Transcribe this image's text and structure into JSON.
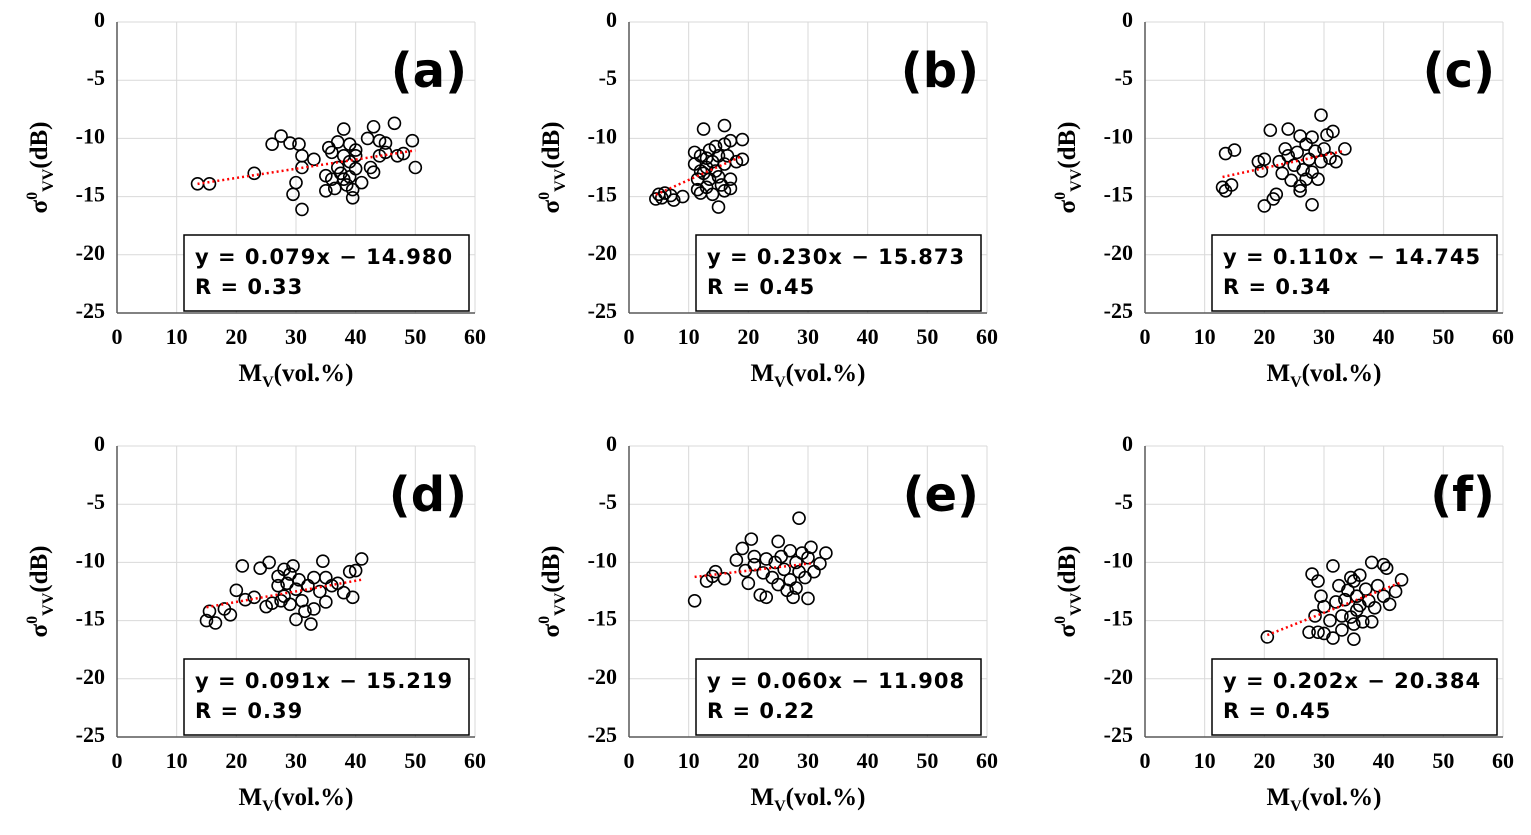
{
  "chart_data": [
    {
      "type": "scatter",
      "label": "(a)",
      "xlabel": {
        "main": "M",
        "sub": "V",
        "rest": "(vol.%)"
      },
      "ylabel": {
        "main": "σ",
        "sup": "0",
        "sub": "VV",
        "rest": "(dB)"
      },
      "x": [
        13.5,
        15.5,
        23,
        26,
        27.5,
        29,
        29.5,
        30,
        30.5,
        31,
        31,
        31,
        33,
        35,
        35.5,
        36,
        36,
        36.5,
        37,
        37.5,
        38,
        38,
        38,
        38.5,
        39,
        39,
        39,
        39.5,
        39.5,
        40,
        40,
        40,
        41,
        42,
        42.5,
        43,
        43,
        44,
        44,
        45,
        45,
        46.5,
        47,
        48,
        49.5,
        50,
        37,
        35
      ],
      "values": [
        -13.9,
        -13.9,
        -13,
        -10.5,
        -9.8,
        -10.4,
        -14.8,
        -13.8,
        -10.5,
        -11.5,
        -16.1,
        -12.5,
        -11.8,
        -14.5,
        -10.8,
        -11.2,
        -13.5,
        -14.3,
        -12.5,
        -13,
        -11.5,
        -9.2,
        -13.5,
        -14,
        -12,
        -10.5,
        -13.3,
        -14.4,
        -15.1,
        -11,
        -11.5,
        -12.6,
        -13.8,
        -10,
        -12.5,
        -9,
        -12.9,
        -10.2,
        -11.5,
        -10.4,
        -11.2,
        -8.7,
        -11.5,
        -11.3,
        -10.2,
        -12.5,
        -10.3,
        -13.2
      ],
      "trendline": {
        "x": [
          13.5,
          50
        ],
        "y": [
          -13.91,
          -11.03
        ]
      },
      "annotation": [
        "y = 0.079x − 14.980",
        "R = 0.33"
      ],
      "xlim": [
        0,
        60
      ],
      "ylim": [
        -25,
        0
      ],
      "xticks": [
        0,
        10,
        20,
        30,
        40,
        50,
        60
      ],
      "yticks": [
        0,
        -5,
        -10,
        -15,
        -20,
        -25
      ],
      "grid": true,
      "color": "#000000",
      "trend_color": "#ff0000"
    },
    {
      "type": "scatter",
      "label": "(b)",
      "xlabel": {
        "main": "M",
        "sub": "V",
        "rest": "(vol.%)"
      },
      "ylabel": {
        "main": "σ",
        "sup": "0",
        "sub": "VV",
        "rest": "(dB)"
      },
      "x": [
        4.5,
        5,
        5.5,
        6,
        7,
        7.5,
        9,
        11,
        11,
        11.5,
        11.5,
        12,
        12,
        12,
        12.5,
        12.5,
        13,
        13,
        13,
        13.5,
        13.5,
        14,
        14,
        14.5,
        14.5,
        15,
        15,
        15,
        15.5,
        16,
        16,
        16,
        16,
        16.5,
        17,
        17,
        17,
        18,
        19,
        19
      ],
      "values": [
        -15.2,
        -14.8,
        -15.1,
        -14.7,
        -14.9,
        -15.3,
        -15,
        -11.2,
        -12.2,
        -13.5,
        -14.4,
        -11.5,
        -12.8,
        -14.7,
        -9.2,
        -13,
        -11.7,
        -12.5,
        -14.2,
        -11,
        -13.5,
        -12,
        -14.8,
        -10.7,
        -12.8,
        -13.3,
        -15.9,
        -11.5,
        -14,
        -8.9,
        -10.5,
        -12.2,
        -14.5,
        -11.5,
        -13.5,
        -10.2,
        -14.3,
        -12,
        -10.1,
        -11.8
      ],
      "trendline": {
        "x": [
          4.5,
          19
        ],
        "y": [
          -14.84,
          -11.5
        ]
      },
      "annotation": [
        "y = 0.230x − 15.873",
        "R = 0.45"
      ],
      "xlim": [
        0,
        60
      ],
      "ylim": [
        -25,
        0
      ],
      "xticks": [
        0,
        10,
        20,
        30,
        40,
        50,
        60
      ],
      "yticks": [
        0,
        -5,
        -10,
        -15,
        -20,
        -25
      ],
      "grid": true,
      "color": "#000000",
      "trend_color": "#ff0000"
    },
    {
      "type": "scatter",
      "label": "(c)",
      "xlabel": {
        "main": "M",
        "sub": "V",
        "rest": "(vol.%)"
      },
      "ylabel": {
        "main": "σ",
        "sup": "0",
        "sub": "VV",
        "rest": "(dB)"
      },
      "x": [
        13,
        13.5,
        13.5,
        14.5,
        15,
        19,
        19.5,
        20,
        20,
        21,
        21.5,
        22,
        22.5,
        23,
        23.5,
        24,
        24,
        24.5,
        25,
        25.5,
        26,
        26,
        26.5,
        27,
        27,
        27.5,
        28,
        28,
        28,
        28.5,
        29,
        29.5,
        29.5,
        30,
        30.5,
        31,
        31.5,
        32,
        33.5,
        26
      ],
      "values": [
        -14.2,
        -11.3,
        -14.5,
        -14,
        -11,
        -12,
        -12.8,
        -11.8,
        -15.8,
        -9.3,
        -15.2,
        -14.8,
        -12,
        -13,
        -10.9,
        -9.2,
        -11.5,
        -13.6,
        -12.3,
        -11.2,
        -9.8,
        -14.1,
        -12.7,
        -10.5,
        -13.5,
        -11.8,
        -9.9,
        -12.9,
        -15.7,
        -11.1,
        -13.5,
        -8,
        -12,
        -10.9,
        -9.7,
        -11.7,
        -9.4,
        -12,
        -10.9,
        -14.5
      ],
      "trendline": {
        "x": [
          13,
          33
        ],
        "y": [
          -13.315,
          -11.115
        ]
      },
      "annotation": [
        "y = 0.110x − 14.745",
        "R = 0.34"
      ],
      "xlim": [
        0,
        60
      ],
      "ylim": [
        -25,
        0
      ],
      "xticks": [
        0,
        10,
        20,
        30,
        40,
        50,
        60
      ],
      "yticks": [
        0,
        -5,
        -10,
        -15,
        -20,
        -25
      ],
      "grid": true,
      "color": "#000000",
      "trend_color": "#ff0000"
    },
    {
      "type": "scatter",
      "label": "(d)",
      "xlabel": {
        "main": "M",
        "sub": "V",
        "rest": "(vol.%)"
      },
      "ylabel": {
        "main": "σ",
        "sup": "0",
        "sub": "VV",
        "rest": "(dB)"
      },
      "x": [
        15,
        15.5,
        16.5,
        18,
        19,
        20,
        21,
        21.5,
        23,
        24,
        25,
        25.5,
        26,
        27,
        27,
        27.5,
        28,
        28,
        28.5,
        29,
        29,
        29.5,
        30,
        30,
        30.5,
        31,
        31.5,
        32,
        32.5,
        33,
        33,
        34,
        34.5,
        35,
        35,
        36,
        37,
        38,
        39,
        39.5,
        40,
        41
      ],
      "values": [
        -15,
        -14.2,
        -15.2,
        -14,
        -14.5,
        -12.4,
        -10.3,
        -13.2,
        -13,
        -10.5,
        -13.8,
        -10,
        -13.5,
        -12,
        -11.2,
        -13.3,
        -10.6,
        -12.9,
        -11.8,
        -11,
        -13.6,
        -10.3,
        -12.3,
        -14.9,
        -11.5,
        -13.3,
        -14.2,
        -12,
        -15.3,
        -11.3,
        -14,
        -12.5,
        -9.9,
        -11.3,
        -13.4,
        -12,
        -11.8,
        -12.6,
        -10.8,
        -13,
        -10.7,
        -9.7
      ],
      "trendline": {
        "x": [
          15,
          41
        ],
        "y": [
          -13.854,
          -11.488
        ]
      },
      "annotation": [
        "y = 0.091x − 15.219",
        "R = 0.39"
      ],
      "xlim": [
        0,
        60
      ],
      "ylim": [
        -25,
        0
      ],
      "xticks": [
        0,
        10,
        20,
        30,
        40,
        50,
        60
      ],
      "yticks": [
        0,
        -5,
        -10,
        -15,
        -20,
        -25
      ],
      "grid": true,
      "color": "#000000",
      "trend_color": "#ff0000"
    },
    {
      "type": "scatter",
      "label": "(e)",
      "xlabel": {
        "main": "M",
        "sub": "V",
        "rest": "(vol.%)"
      },
      "ylabel": {
        "main": "σ",
        "sup": "0",
        "sub": "VV",
        "rest": "(dB)"
      },
      "x": [
        11,
        13,
        14,
        14.5,
        16,
        18,
        19,
        19.5,
        20,
        20.5,
        21,
        21,
        22,
        22.5,
        23,
        23,
        24,
        24.5,
        25,
        25,
        25.5,
        26,
        26.5,
        27,
        27,
        27.5,
        28,
        28,
        28.5,
        28.5,
        29,
        29.5,
        30,
        30,
        30.5,
        31,
        32,
        33
      ],
      "values": [
        -13.3,
        -11.6,
        -11.2,
        -10.8,
        -11.4,
        -9.8,
        -8.8,
        -10.7,
        -11.8,
        -8,
        -9.5,
        -10.2,
        -12.8,
        -10.9,
        -9.7,
        -13,
        -11.3,
        -10,
        -8.2,
        -11.9,
        -9.5,
        -10.6,
        -12.4,
        -9,
        -11.5,
        -13,
        -10,
        -12.2,
        -6.2,
        -10.8,
        -9.2,
        -11.3,
        -13.1,
        -9.6,
        -8.7,
        -10.8,
        -10.1,
        -9.2
      ],
      "trendline": {
        "x": [
          11,
          31
        ],
        "y": [
          -11.248,
          -10.048
        ]
      },
      "annotation": [
        "y = 0.060x − 11.908",
        "R = 0.22"
      ],
      "xlim": [
        0,
        60
      ],
      "ylim": [
        -25,
        0
      ],
      "xticks": [
        0,
        10,
        20,
        30,
        40,
        50,
        60
      ],
      "yticks": [
        0,
        -5,
        -10,
        -15,
        -20,
        -25
      ],
      "grid": true,
      "color": "#000000",
      "trend_color": "#ff0000"
    },
    {
      "type": "scatter",
      "label": "(f)",
      "xlabel": {
        "main": "M",
        "sub": "V",
        "rest": "(vol.%)"
      },
      "ylabel": {
        "main": "σ",
        "sup": "0",
        "sub": "VV",
        "rest": "(dB)"
      },
      "x": [
        20.5,
        27.5,
        28,
        28.5,
        29,
        29,
        29.5,
        30,
        30,
        31,
        31.5,
        31.5,
        32,
        32.5,
        33,
        33,
        33.5,
        34,
        34.5,
        34.5,
        35,
        35,
        35,
        35.5,
        35.5,
        36,
        36,
        36.5,
        37,
        37.5,
        38,
        38,
        38.5,
        39,
        40,
        40,
        40.5,
        41,
        42,
        43
      ],
      "values": [
        -16.4,
        -16,
        -11,
        -14.6,
        -11.6,
        -16,
        -12.9,
        -13.8,
        -16.1,
        -15,
        -10.3,
        -16.5,
        -13.4,
        -12,
        -14.6,
        -15.8,
        -13.2,
        -12.4,
        -11.3,
        -14.7,
        -11.6,
        -15.3,
        -16.6,
        -12.9,
        -14.1,
        -11.1,
        -13.7,
        -15.1,
        -12.3,
        -13.3,
        -10,
        -15.1,
        -13.9,
        -12,
        -10.2,
        -12.9,
        -10.5,
        -13.6,
        -12.5,
        -11.5
      ],
      "trendline": {
        "x": [
          20.5,
          43
        ],
        "y": [
          -16.243,
          -11.698
        ]
      },
      "annotation": [
        "y = 0.202x − 20.384",
        "R = 0.45"
      ],
      "xlim": [
        0,
        60
      ],
      "ylim": [
        -25,
        0
      ],
      "xticks": [
        0,
        10,
        20,
        30,
        40,
        50,
        60
      ],
      "yticks": [
        0,
        -5,
        -10,
        -15,
        -20,
        -25
      ],
      "grid": true,
      "color": "#000000",
      "trend_color": "#ff0000"
    }
  ]
}
